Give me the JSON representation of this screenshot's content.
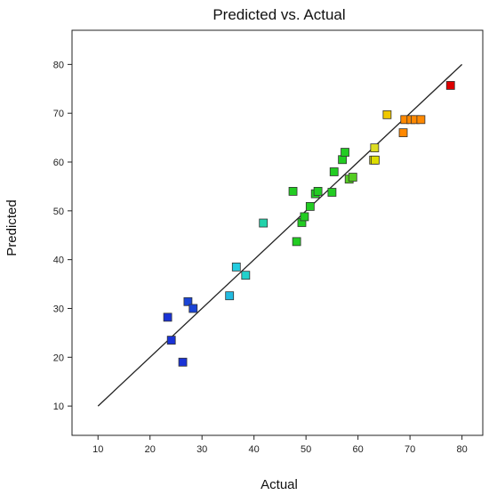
{
  "chart_data": {
    "type": "scatter",
    "title": "Predicted vs. Actual",
    "xlabel": "Actual",
    "ylabel": "Predicted",
    "xlim": [
      5,
      84
    ],
    "ylim": [
      4,
      87
    ],
    "xticks": [
      10,
      20,
      30,
      40,
      50,
      60,
      70,
      80
    ],
    "yticks": [
      10,
      20,
      30,
      40,
      50,
      60,
      70,
      80
    ],
    "grid": false,
    "reference_line": {
      "x": [
        10,
        80
      ],
      "y": [
        10,
        80
      ]
    },
    "colors": {
      "line": "#222222",
      "marker_edge": "#333333",
      "scale_low": "#0033cc",
      "scale_mid": "#00cc00",
      "scale_high": "#e00000"
    },
    "points": [
      {
        "x": 23.4,
        "y": 28.2,
        "color": "#1a33d6"
      },
      {
        "x": 24.1,
        "y": 23.5,
        "color": "#1a33d6"
      },
      {
        "x": 26.3,
        "y": 19.0,
        "color": "#1a33d6"
      },
      {
        "x": 27.3,
        "y": 31.4,
        "color": "#1a44d6"
      },
      {
        "x": 28.3,
        "y": 30.0,
        "color": "#1a44d6"
      },
      {
        "x": 35.3,
        "y": 32.6,
        "color": "#22bbe0"
      },
      {
        "x": 36.6,
        "y": 38.5,
        "color": "#22cce0"
      },
      {
        "x": 38.4,
        "y": 36.8,
        "color": "#22d2cc"
      },
      {
        "x": 41.8,
        "y": 47.5,
        "color": "#22d2aa"
      },
      {
        "x": 47.5,
        "y": 54.0,
        "color": "#22cc22"
      },
      {
        "x": 48.2,
        "y": 43.7,
        "color": "#22cc22"
      },
      {
        "x": 49.2,
        "y": 47.6,
        "color": "#22cc22"
      },
      {
        "x": 49.7,
        "y": 48.8,
        "color": "#22cc22"
      },
      {
        "x": 50.8,
        "y": 50.9,
        "color": "#22cc22"
      },
      {
        "x": 51.8,
        "y": 53.5,
        "color": "#22cc22"
      },
      {
        "x": 52.3,
        "y": 54.0,
        "color": "#22cc22"
      },
      {
        "x": 55.0,
        "y": 53.8,
        "color": "#22cc22"
      },
      {
        "x": 55.4,
        "y": 58.0,
        "color": "#22cc22"
      },
      {
        "x": 57.0,
        "y": 60.5,
        "color": "#22cc22"
      },
      {
        "x": 57.5,
        "y": 62.0,
        "color": "#22cc22"
      },
      {
        "x": 58.3,
        "y": 56.5,
        "color": "#55cc22"
      },
      {
        "x": 59.0,
        "y": 56.9,
        "color": "#55cc22"
      },
      {
        "x": 63.0,
        "y": 60.4,
        "color": "#cccc00"
      },
      {
        "x": 63.2,
        "y": 62.9,
        "color": "#dddd22"
      },
      {
        "x": 63.3,
        "y": 60.4,
        "color": "#dddd00"
      },
      {
        "x": 65.6,
        "y": 69.7,
        "color": "#f0c800"
      },
      {
        "x": 68.7,
        "y": 66.0,
        "color": "#ff8800"
      },
      {
        "x": 69.0,
        "y": 68.7,
        "color": "#ff8800"
      },
      {
        "x": 70.2,
        "y": 68.7,
        "color": "#ff8800"
      },
      {
        "x": 71.0,
        "y": 68.7,
        "color": "#ff8800"
      },
      {
        "x": 72.1,
        "y": 68.7,
        "color": "#ff8800"
      },
      {
        "x": 77.8,
        "y": 75.7,
        "color": "#dd0000"
      }
    ]
  }
}
